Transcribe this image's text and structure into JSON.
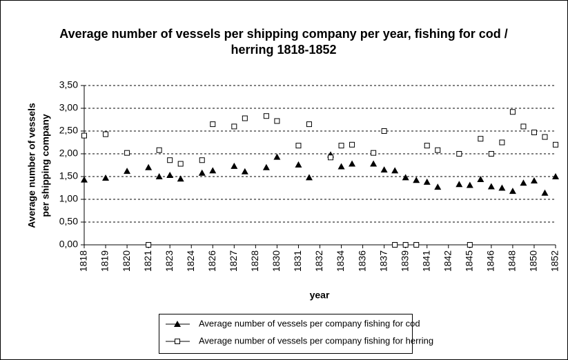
{
  "chart_data": {
    "type": "scatter",
    "title": "Average number of vessels per shipping company per year, fishing for cod /",
    "title_line2": "herring 1818-1852",
    "y_label": "Average number of vessels",
    "y_label_line2": "per shipping company",
    "x_label": "year",
    "categories": [
      "1818",
      null,
      "1819",
      null,
      "1820",
      null,
      "1821",
      null,
      "1823",
      null,
      "1824",
      null,
      "1826",
      null,
      "1827",
      null,
      "1828",
      null,
      "1830",
      null,
      "1831",
      null,
      "1832",
      null,
      "1834",
      null,
      "1836",
      null,
      "1837",
      null,
      "1839",
      null,
      "1841",
      null,
      "1842",
      null,
      "1845",
      null,
      "1846",
      null,
      "1848",
      null,
      "1850",
      null,
      "1852"
    ],
    "series": [
      {
        "name": "Average number of vessels per company fishing for cod",
        "color": "#000000",
        "marker": "triangle",
        "values": [
          1.43,
          null,
          1.47,
          null,
          1.62,
          null,
          1.7,
          1.5,
          1.53,
          1.45,
          null,
          1.58,
          1.63,
          null,
          1.73,
          1.61,
          null,
          1.7,
          1.93,
          null,
          1.76,
          1.48,
          null,
          1.98,
          1.72,
          1.78,
          null,
          1.78,
          1.65,
          1.63,
          1.48,
          1.42,
          1.38,
          1.27,
          null,
          1.33,
          1.31,
          1.44,
          1.28,
          1.25,
          1.18,
          1.36,
          1.41,
          1.14,
          1.5
        ]
      },
      {
        "name": "Average number of vessels per company fishing for herring",
        "color": "#000000",
        "marker": "square",
        "values": [
          2.4,
          null,
          2.43,
          null,
          2.02,
          null,
          0,
          2.08,
          1.86,
          1.78,
          null,
          1.86,
          2.65,
          null,
          2.6,
          2.78,
          null,
          2.83,
          2.72,
          null,
          2.18,
          2.65,
          null,
          1.92,
          2.18,
          2.2,
          null,
          2.02,
          2.5,
          0,
          0,
          0,
          2.18,
          2.08,
          null,
          2.0,
          0,
          2.33,
          2.0,
          2.25,
          2.92,
          2.6,
          2.47,
          2.37,
          2.2
        ]
      }
    ],
    "ylim": [
      0,
      3.5
    ],
    "yticks": [
      {
        "value": 0,
        "label": "0,00"
      },
      {
        "value": 0.5,
        "label": "0,50"
      },
      {
        "value": 1,
        "label": "1,00"
      },
      {
        "value": 1.5,
        "label": "1,50"
      },
      {
        "value": 2,
        "label": "2,00"
      },
      {
        "value": 2.5,
        "label": "2,50"
      },
      {
        "value": 3,
        "label": "3,00"
      },
      {
        "value": 3.5,
        "label": "3,50"
      }
    ],
    "grid": true,
    "legend": "bottom"
  }
}
